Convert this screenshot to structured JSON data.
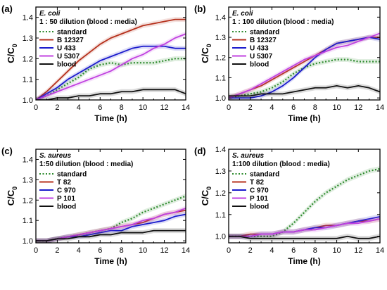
{
  "chart_data": [
    {
      "type": "line",
      "panel_label": "(a)",
      "organism": "E. coli",
      "condition": "1 : 50 dilution (blood : media)",
      "xlabel": "Time (h)",
      "ylabel_main": "C/C",
      "ylabel_sub": "0",
      "xlim": [
        0,
        14
      ],
      "ylim": [
        1.0,
        1.45
      ],
      "xticks": [
        0,
        2,
        4,
        6,
        8,
        10,
        12,
        14
      ],
      "yticks": [
        1.0,
        1.1,
        1.2,
        1.3,
        1.4
      ],
      "x": [
        0,
        1,
        2,
        3,
        4,
        5,
        6,
        7,
        8,
        9,
        10,
        11,
        12,
        13,
        14
      ],
      "series": [
        {
          "name": "standard",
          "color": "#2e8b2e",
          "dashed": true,
          "values": [
            1.0,
            1.02,
            1.05,
            1.08,
            1.11,
            1.15,
            1.17,
            1.18,
            1.17,
            1.18,
            1.18,
            1.18,
            1.19,
            1.2,
            1.2
          ]
        },
        {
          "name": "B 12327",
          "color": "#b5301c",
          "dashed": false,
          "values": [
            1.0,
            1.04,
            1.09,
            1.14,
            1.19,
            1.23,
            1.27,
            1.3,
            1.32,
            1.34,
            1.36,
            1.37,
            1.38,
            1.39,
            1.39
          ]
        },
        {
          "name": "U 433",
          "color": "#1a1acc",
          "dashed": false,
          "values": [
            1.0,
            1.03,
            1.06,
            1.1,
            1.13,
            1.16,
            1.19,
            1.21,
            1.23,
            1.25,
            1.26,
            1.26,
            1.26,
            1.25,
            1.25
          ]
        },
        {
          "name": "U 5307",
          "color": "#c040e0",
          "dashed": false,
          "values": [
            1.0,
            1.02,
            1.04,
            1.06,
            1.08,
            1.1,
            1.12,
            1.14,
            1.17,
            1.2,
            1.22,
            1.25,
            1.27,
            1.3,
            1.32
          ]
        },
        {
          "name": "blood",
          "color": "#111111",
          "dashed": false,
          "values": [
            1.0,
            1.0,
            1.01,
            1.01,
            1.02,
            1.02,
            1.03,
            1.03,
            1.04,
            1.04,
            1.05,
            1.05,
            1.05,
            1.05,
            1.03
          ]
        }
      ]
    },
    {
      "type": "line",
      "panel_label": "(b)",
      "organism": "E. coli",
      "condition": "1 : 100 dilution (blood : media)",
      "xlabel": "Time (h)",
      "ylabel_main": "C/C",
      "ylabel_sub": "0",
      "xlim": [
        0,
        14
      ],
      "ylim": [
        0.99,
        1.45
      ],
      "xticks": [
        0,
        2,
        4,
        6,
        8,
        10,
        12,
        14
      ],
      "yticks": [
        1.0,
        1.1,
        1.2,
        1.3,
        1.4
      ],
      "x": [
        0,
        1,
        2,
        3,
        4,
        5,
        6,
        7,
        8,
        9,
        10,
        11,
        12,
        13,
        14
      ],
      "series": [
        {
          "name": "standard",
          "color": "#2e8b2e",
          "dashed": true,
          "values": [
            1.0,
            1.01,
            1.02,
            1.03,
            1.05,
            1.08,
            1.12,
            1.15,
            1.17,
            1.18,
            1.19,
            1.19,
            1.18,
            1.18,
            1.18
          ]
        },
        {
          "name": "B 12327",
          "color": "#b5301c",
          "dashed": false,
          "values": [
            1.0,
            1.02,
            1.04,
            1.06,
            1.09,
            1.12,
            1.15,
            1.18,
            1.21,
            1.24,
            1.27,
            1.28,
            1.29,
            1.3,
            1.3
          ]
        },
        {
          "name": "U 433",
          "color": "#1a1acc",
          "dashed": false,
          "values": [
            1.0,
            1.0,
            1.0,
            1.01,
            1.03,
            1.06,
            1.1,
            1.15,
            1.2,
            1.24,
            1.27,
            1.28,
            1.29,
            1.3,
            1.29
          ]
        },
        {
          "name": "U 5307",
          "color": "#c040e0",
          "dashed": false,
          "values": [
            1.0,
            1.02,
            1.04,
            1.07,
            1.1,
            1.13,
            1.16,
            1.19,
            1.21,
            1.23,
            1.25,
            1.26,
            1.28,
            1.3,
            1.32
          ]
        },
        {
          "name": "blood",
          "color": "#111111",
          "dashed": false,
          "values": [
            1.01,
            1.01,
            1.01,
            1.02,
            1.02,
            1.02,
            1.03,
            1.04,
            1.05,
            1.05,
            1.06,
            1.05,
            1.06,
            1.05,
            1.03
          ]
        }
      ]
    },
    {
      "type": "line",
      "panel_label": "(c)",
      "organism": "S. aureus",
      "condition": "1:50 dilution (blood : media)",
      "xlabel": "Time (h)",
      "ylabel_main": "C/C",
      "ylabel_sub": "0",
      "xlim": [
        0,
        14
      ],
      "ylim": [
        0.99,
        1.45
      ],
      "xticks": [
        0,
        2,
        4,
        6,
        8,
        10,
        12,
        14
      ],
      "yticks": [
        1.0,
        1.1,
        1.2,
        1.3,
        1.4
      ],
      "x": [
        0,
        1,
        2,
        3,
        4,
        5,
        6,
        7,
        8,
        9,
        10,
        11,
        12,
        13,
        14
      ],
      "series": [
        {
          "name": "standard",
          "color": "#2e8b2e",
          "dashed": true,
          "values": [
            1.0,
            1.0,
            1.01,
            1.02,
            1.03,
            1.04,
            1.05,
            1.06,
            1.09,
            1.11,
            1.14,
            1.16,
            1.18,
            1.2,
            1.22
          ]
        },
        {
          "name": "T 82",
          "color": "#b5301c",
          "dashed": false,
          "values": [
            1.0,
            1.0,
            1.01,
            1.02,
            1.03,
            1.04,
            1.05,
            1.06,
            1.07,
            1.08,
            1.09,
            1.11,
            1.13,
            1.14,
            1.15
          ]
        },
        {
          "name": "C 970",
          "color": "#1a1acc",
          "dashed": false,
          "values": [
            1.0,
            1.0,
            1.01,
            1.02,
            1.02,
            1.03,
            1.04,
            1.05,
            1.05,
            1.07,
            1.08,
            1.09,
            1.1,
            1.12,
            1.13
          ]
        },
        {
          "name": "P 101",
          "color": "#c040e0",
          "dashed": false,
          "values": [
            1.0,
            1.0,
            1.01,
            1.02,
            1.03,
            1.04,
            1.05,
            1.06,
            1.07,
            1.08,
            1.1,
            1.11,
            1.13,
            1.14,
            1.16
          ]
        },
        {
          "name": "blood",
          "color": "#111111",
          "dashed": false,
          "values": [
            1.0,
            1.0,
            1.01,
            1.01,
            1.02,
            1.02,
            1.03,
            1.03,
            1.04,
            1.04,
            1.04,
            1.05,
            1.05,
            1.05,
            1.05
          ]
        }
      ]
    },
    {
      "type": "line",
      "panel_label": "(d)",
      "organism": "S. aureus",
      "condition": "1:100 dilution (blood : media)",
      "xlabel": "Time (h)",
      "ylabel_main": "C/C",
      "ylabel_sub": "0",
      "xlim": [
        0,
        14
      ],
      "ylim": [
        0.97,
        1.4
      ],
      "xticks": [
        0,
        2,
        4,
        6,
        8,
        10,
        12,
        14
      ],
      "yticks": [
        1.0,
        1.1,
        1.2,
        1.3,
        1.4
      ],
      "x": [
        0,
        1,
        2,
        3,
        4,
        5,
        6,
        7,
        8,
        9,
        10,
        11,
        12,
        13,
        14
      ],
      "series": [
        {
          "name": "standard",
          "color": "#2e8b2e",
          "dashed": true,
          "values": [
            1.0,
            1.0,
            1.0,
            1.0,
            1.0,
            1.02,
            1.06,
            1.11,
            1.16,
            1.2,
            1.23,
            1.26,
            1.28,
            1.3,
            1.31
          ]
        },
        {
          "name": "T 82",
          "color": "#b5301c",
          "dashed": false,
          "values": [
            1.0,
            1.0,
            1.01,
            1.01,
            1.01,
            1.02,
            1.02,
            1.03,
            1.04,
            1.05,
            1.05,
            1.06,
            1.07,
            1.07,
            1.08
          ]
        },
        {
          "name": "C 970",
          "color": "#1a1acc",
          "dashed": false,
          "values": [
            1.0,
            1.0,
            1.0,
            1.01,
            1.01,
            1.02,
            1.02,
            1.03,
            1.04,
            1.04,
            1.05,
            1.06,
            1.07,
            1.08,
            1.09
          ]
        },
        {
          "name": "P 101",
          "color": "#c040e0",
          "dashed": false,
          "values": [
            1.0,
            1.0,
            1.0,
            1.01,
            1.01,
            1.02,
            1.02,
            1.03,
            1.03,
            1.04,
            1.05,
            1.06,
            1.06,
            1.07,
            1.08
          ]
        },
        {
          "name": "blood",
          "color": "#111111",
          "dashed": false,
          "values": [
            1.0,
            1.0,
            0.99,
            0.99,
            0.99,
            0.99,
            0.99,
            0.99,
            0.99,
            0.99,
            0.99,
            1.0,
            0.99,
            0.99,
            1.0
          ]
        }
      ]
    }
  ]
}
